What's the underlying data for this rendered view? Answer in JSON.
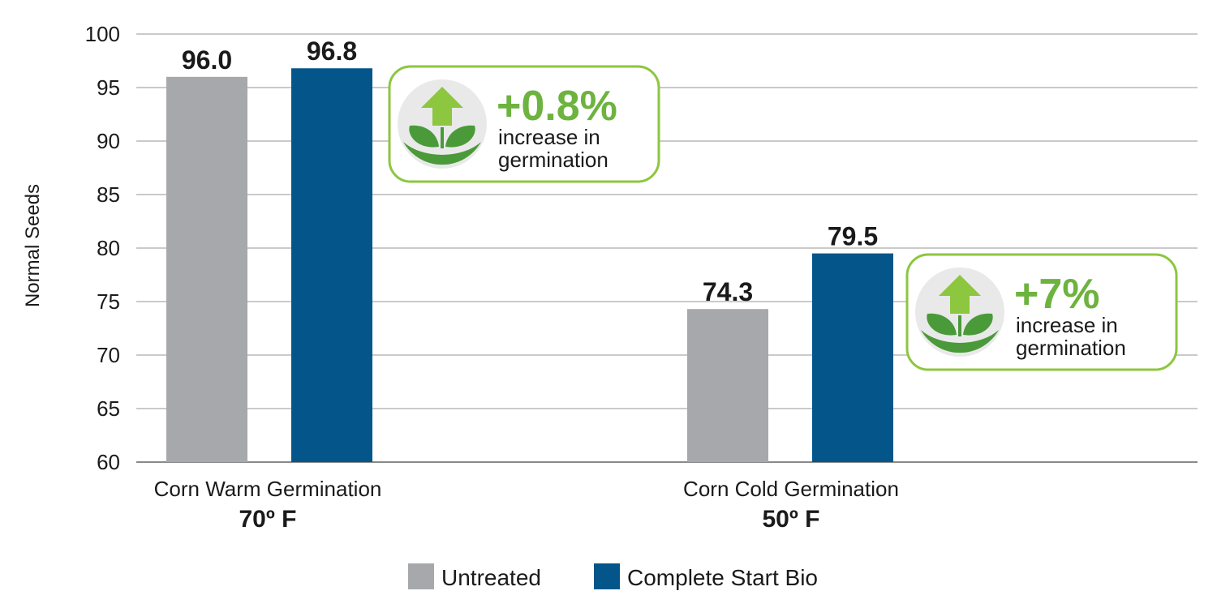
{
  "colors": {
    "untreated": "#a7a8ab",
    "treated": "#04568a",
    "grid": "#b8b8b8",
    "callout_border": "#8dc63f",
    "callout_pct": "#6db33f",
    "icon_arrow": "#8dc63f",
    "icon_leaf": "#4a9a3a",
    "icon_bg": "#e9e9e9"
  },
  "chart_data": {
    "type": "bar",
    "ylabel": "Normal Seeds",
    "ylim": [
      60,
      100
    ],
    "yticks": [
      60,
      65,
      70,
      75,
      80,
      85,
      90,
      95,
      100
    ],
    "grid": true,
    "legend_position": "bottom",
    "categories": [
      {
        "line1": "Corn Warm Germination",
        "line2": "70º F"
      },
      {
        "line1": "Corn Cold Germination",
        "line2": "50º F"
      }
    ],
    "series": [
      {
        "name": "Untreated",
        "values": [
          96.0,
          74.3
        ],
        "labels": [
          "96.0",
          "74.3"
        ]
      },
      {
        "name": "Complete Start Bio",
        "values": [
          96.8,
          79.5
        ],
        "labels": [
          "96.8",
          "79.5"
        ]
      }
    ]
  },
  "callouts": [
    {
      "pct": "+0.8%",
      "line1": "increase in",
      "line2": "germination",
      "icon": "sprout-growth-icon"
    },
    {
      "pct": "+7%",
      "line1": "increase in",
      "line2": "germination",
      "icon": "sprout-growth-icon"
    }
  ]
}
